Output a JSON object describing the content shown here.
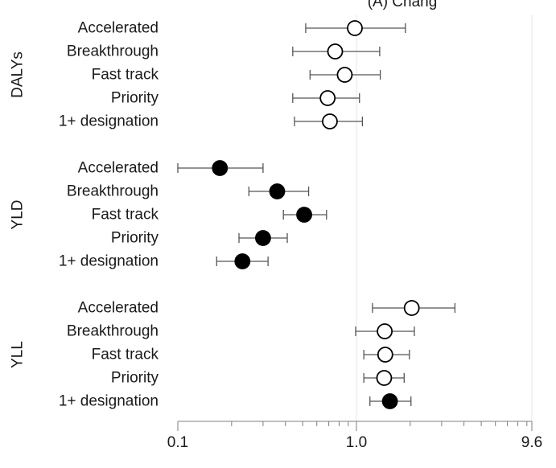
{
  "chart_data": {
    "type": "scatter",
    "subtype": "forest-plot",
    "title": "(A) Chang",
    "x_scale": "log",
    "xlim": [
      0.1,
      9.6
    ],
    "x_ticks": [
      {
        "value": 0.1,
        "label": "0.1"
      },
      {
        "value": 1.0,
        "label": "1.0"
      },
      {
        "value": 9.6,
        "label": "9.6"
      }
    ],
    "gridlines_at": [
      1.0,
      9.6
    ],
    "colors": {
      "filled": "#000000",
      "open": "#ffffff",
      "line": "#555555",
      "grid": "#e6e6e6"
    },
    "groups": [
      {
        "label": "DALYs",
        "marker": "open",
        "rows": [
          {
            "category": "Accelerated",
            "estimate": 0.98,
            "lower": 0.52,
            "upper": 1.88
          },
          {
            "category": "Breakthrough",
            "estimate": 0.76,
            "lower": 0.44,
            "upper": 1.35
          },
          {
            "category": "Fast track",
            "estimate": 0.86,
            "lower": 0.55,
            "upper": 1.36
          },
          {
            "category": "Priority",
            "estimate": 0.69,
            "lower": 0.44,
            "upper": 1.04
          },
          {
            "category": "1+ designation",
            "estimate": 0.71,
            "lower": 0.45,
            "upper": 1.08
          }
        ]
      },
      {
        "label": "YLD",
        "marker": "filled",
        "rows": [
          {
            "category": "Accelerated",
            "estimate": 0.172,
            "lower": 0.1,
            "upper": 0.3
          },
          {
            "category": "Breakthrough",
            "estimate": 0.36,
            "lower": 0.25,
            "upper": 0.54
          },
          {
            "category": "Fast track",
            "estimate": 0.51,
            "lower": 0.39,
            "upper": 0.68
          },
          {
            "category": "Priority",
            "estimate": 0.3,
            "lower": 0.22,
            "upper": 0.41
          },
          {
            "category": "1+ designation",
            "estimate": 0.23,
            "lower": 0.165,
            "upper": 0.32
          }
        ]
      },
      {
        "label": "YLL",
        "marker": "mixed",
        "rows": [
          {
            "category": "Accelerated",
            "estimate": 2.04,
            "lower": 1.23,
            "upper": 3.56,
            "marker": "open"
          },
          {
            "category": "Breakthrough",
            "estimate": 1.44,
            "lower": 0.99,
            "upper": 2.11,
            "marker": "open"
          },
          {
            "category": "Fast track",
            "estimate": 1.45,
            "lower": 1.1,
            "upper": 1.98,
            "marker": "open"
          },
          {
            "category": "Priority",
            "estimate": 1.43,
            "lower": 1.1,
            "upper": 1.85,
            "marker": "open"
          },
          {
            "category": "1+ designation",
            "estimate": 1.54,
            "lower": 1.19,
            "upper": 2.02,
            "marker": "filled"
          }
        ]
      }
    ]
  }
}
